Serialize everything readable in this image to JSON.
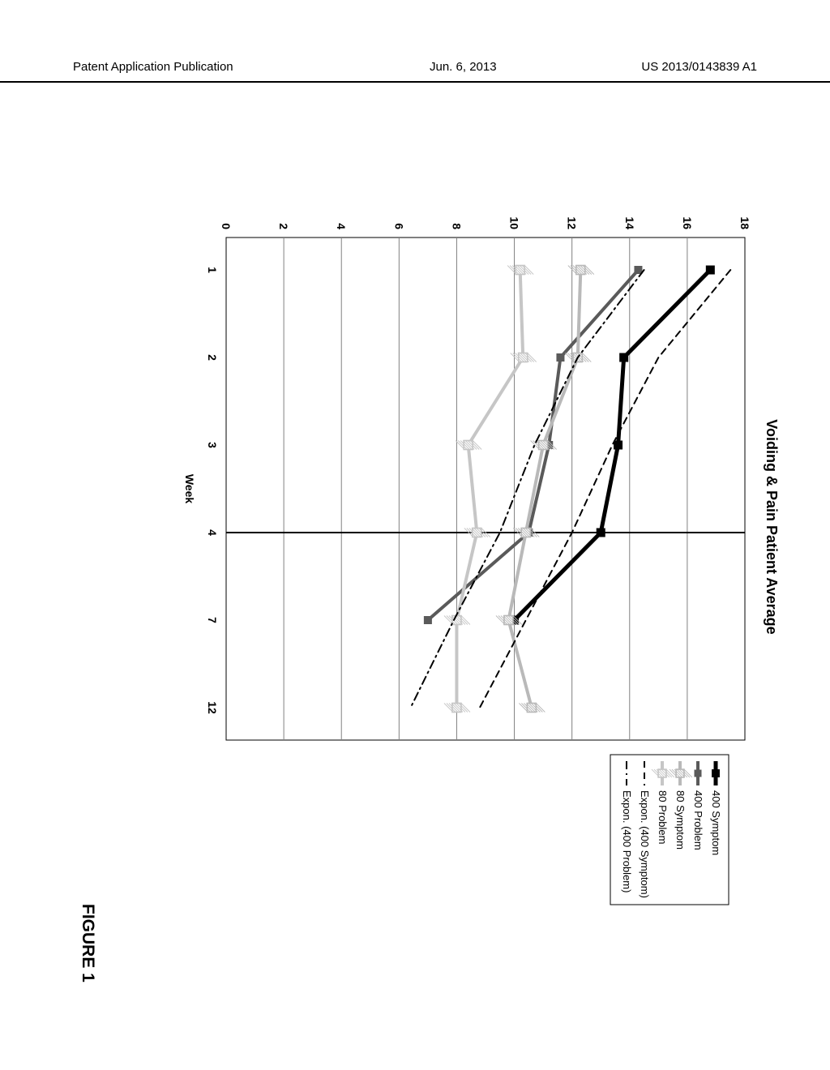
{
  "header": {
    "left": "Patent Application Publication",
    "mid": "Jun. 6, 2013",
    "right": "US 2013/0143839 A1"
  },
  "figure_label": "FIGURE 1",
  "chart": {
    "type": "line",
    "title": "Voiding & Pain Patient Average",
    "title_fontsize": 18,
    "background_color": "#ffffff",
    "plot_border_color": "#000000",
    "grid_color": "#808080",
    "label_fontsize": 14,
    "xlabel": "Week",
    "x_categories": [
      "1",
      "2",
      "3",
      "4",
      "7",
      "12"
    ],
    "ylim": [
      0,
      18
    ],
    "ytick_step": 2,
    "vline_at_index": 3,
    "legend": {
      "position": "right",
      "border_color": "#000000",
      "fontsize": 13,
      "items": [
        {
          "key": "s400s",
          "label": "400 Symptom"
        },
        {
          "key": "s400p",
          "label": "400 Problem"
        },
        {
          "key": "s80s",
          "label": "80 Symptom"
        },
        {
          "key": "s80p",
          "label": "80 Problem"
        },
        {
          "key": "exp_s",
          "label": "Expon. (400 Symptom)"
        },
        {
          "key": "exp_p",
          "label": "Expon. (400 Problem)"
        }
      ]
    },
    "series": {
      "s400s": {
        "values": [
          16.8,
          13.8,
          13.6,
          13.0,
          10.0,
          null
        ],
        "color": "#000000",
        "line_width": 5,
        "marker": "square",
        "marker_size": 11,
        "marker_color": "#000000"
      },
      "s400p": {
        "values": [
          14.3,
          11.6,
          11.2,
          10.5,
          7.0,
          null
        ],
        "color": "#5a5a5a",
        "line_width": 4,
        "marker": "square",
        "marker_size": 10,
        "marker_color": "#5a5a5a"
      },
      "s80s": {
        "values": [
          12.3,
          12.2,
          11.0,
          10.4,
          9.8,
          10.6
        ],
        "color": "#b9b9b9",
        "line_width": 4,
        "marker": "square-hatched",
        "marker_size": 11,
        "marker_color": "#b9b9b9"
      },
      "s80p": {
        "values": [
          10.2,
          10.3,
          8.4,
          8.7,
          8.0,
          8.0
        ],
        "color": "#c6c6c6",
        "line_width": 4,
        "marker": "square-hatched",
        "marker_size": 11,
        "marker_color": "#c6c6c6"
      },
      "exp_s": {
        "values": [
          17.5,
          15.0,
          13.4,
          12.0,
          10.4,
          8.8
        ],
        "color": "#000000",
        "line_width": 2,
        "dash": "8,6",
        "marker": null
      },
      "exp_p": {
        "values": [
          14.5,
          12.2,
          10.7,
          9.5,
          7.9,
          6.4
        ],
        "color": "#000000",
        "line_width": 2,
        "dash": "10,5,2,5",
        "marker": null
      }
    }
  }
}
